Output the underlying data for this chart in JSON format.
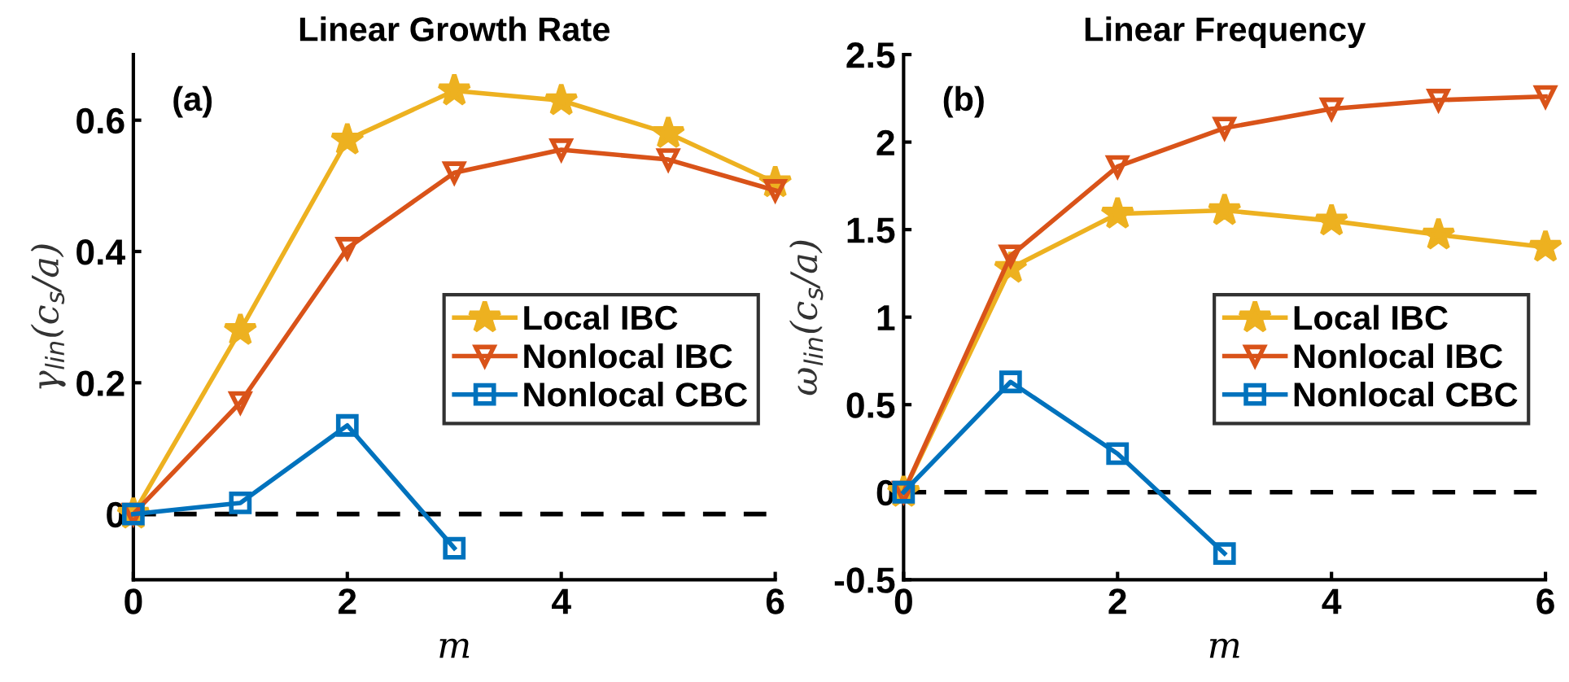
{
  "chart_data": [
    {
      "type": "line",
      "title": "Linear Growth Rate",
      "xlabel": "m",
      "ylabel": "γ$_{lin}$(c$_{s}$/a)",
      "x": [
        0,
        1,
        2,
        3,
        4,
        5,
        6
      ],
      "series": [
        {
          "name": "Local IBC",
          "color": "#edb120",
          "marker": "star",
          "values": [
            0,
            0.28,
            0.57,
            0.645,
            0.63,
            0.58,
            0.505
          ]
        },
        {
          "name": "Nonlocal IBC",
          "color": "#d95319",
          "marker": "triangle",
          "values": [
            0,
            0.17,
            0.405,
            0.52,
            0.555,
            0.54,
            0.493
          ]
        },
        {
          "name": "Nonlocal CBC",
          "color": "#0072bd",
          "marker": "square",
          "x": [
            0,
            1,
            2,
            3
          ],
          "values": [
            0,
            0.017,
            0.135,
            -0.052
          ]
        }
      ],
      "xlim": [
        0,
        6
      ],
      "xticks": [
        0,
        2,
        4,
        6
      ],
      "ylim": [
        -0.1,
        0.7
      ],
      "yticks": [
        0,
        0.2,
        0.4,
        0.6
      ],
      "ref_lines": [
        {
          "axis": "y",
          "value": 0,
          "color": "#000000",
          "line_style": "dashed"
        }
      ],
      "annotations": [
        "(a)"
      ],
      "legend": "center right",
      "grid": false
    },
    {
      "type": "line",
      "title": "Linear Frequency",
      "xlabel": "m",
      "ylabel": "ω$_{lin}$(c$_{s}$/a)",
      "x": [
        0,
        1,
        2,
        3,
        4,
        5,
        6
      ],
      "series": [
        {
          "name": "Local IBC",
          "color": "#edb120",
          "marker": "star",
          "values": [
            0,
            1.28,
            1.59,
            1.61,
            1.55,
            1.47,
            1.4
          ]
        },
        {
          "name": "Nonlocal IBC",
          "color": "#d95319",
          "marker": "triangle",
          "values": [
            0,
            1.35,
            1.86,
            2.08,
            2.19,
            2.24,
            2.26
          ]
        },
        {
          "name": "Nonlocal CBC",
          "color": "#0072bd",
          "marker": "square",
          "x": [
            0,
            1,
            2,
            3
          ],
          "values": [
            0,
            0.63,
            0.22,
            -0.35
          ]
        }
      ],
      "xlim": [
        0,
        6
      ],
      "xticks": [
        0,
        2,
        4,
        6
      ],
      "ylim": [
        -0.5,
        2.5
      ],
      "yticks": [
        -0.5,
        0,
        0.5,
        1,
        1.5,
        2,
        2.5
      ],
      "ref_lines": [
        {
          "axis": "y",
          "value": 0,
          "color": "#000000",
          "line_style": "dashed"
        }
      ],
      "annotations": [
        "(b)"
      ],
      "legend": "center right",
      "grid": false
    }
  ]
}
